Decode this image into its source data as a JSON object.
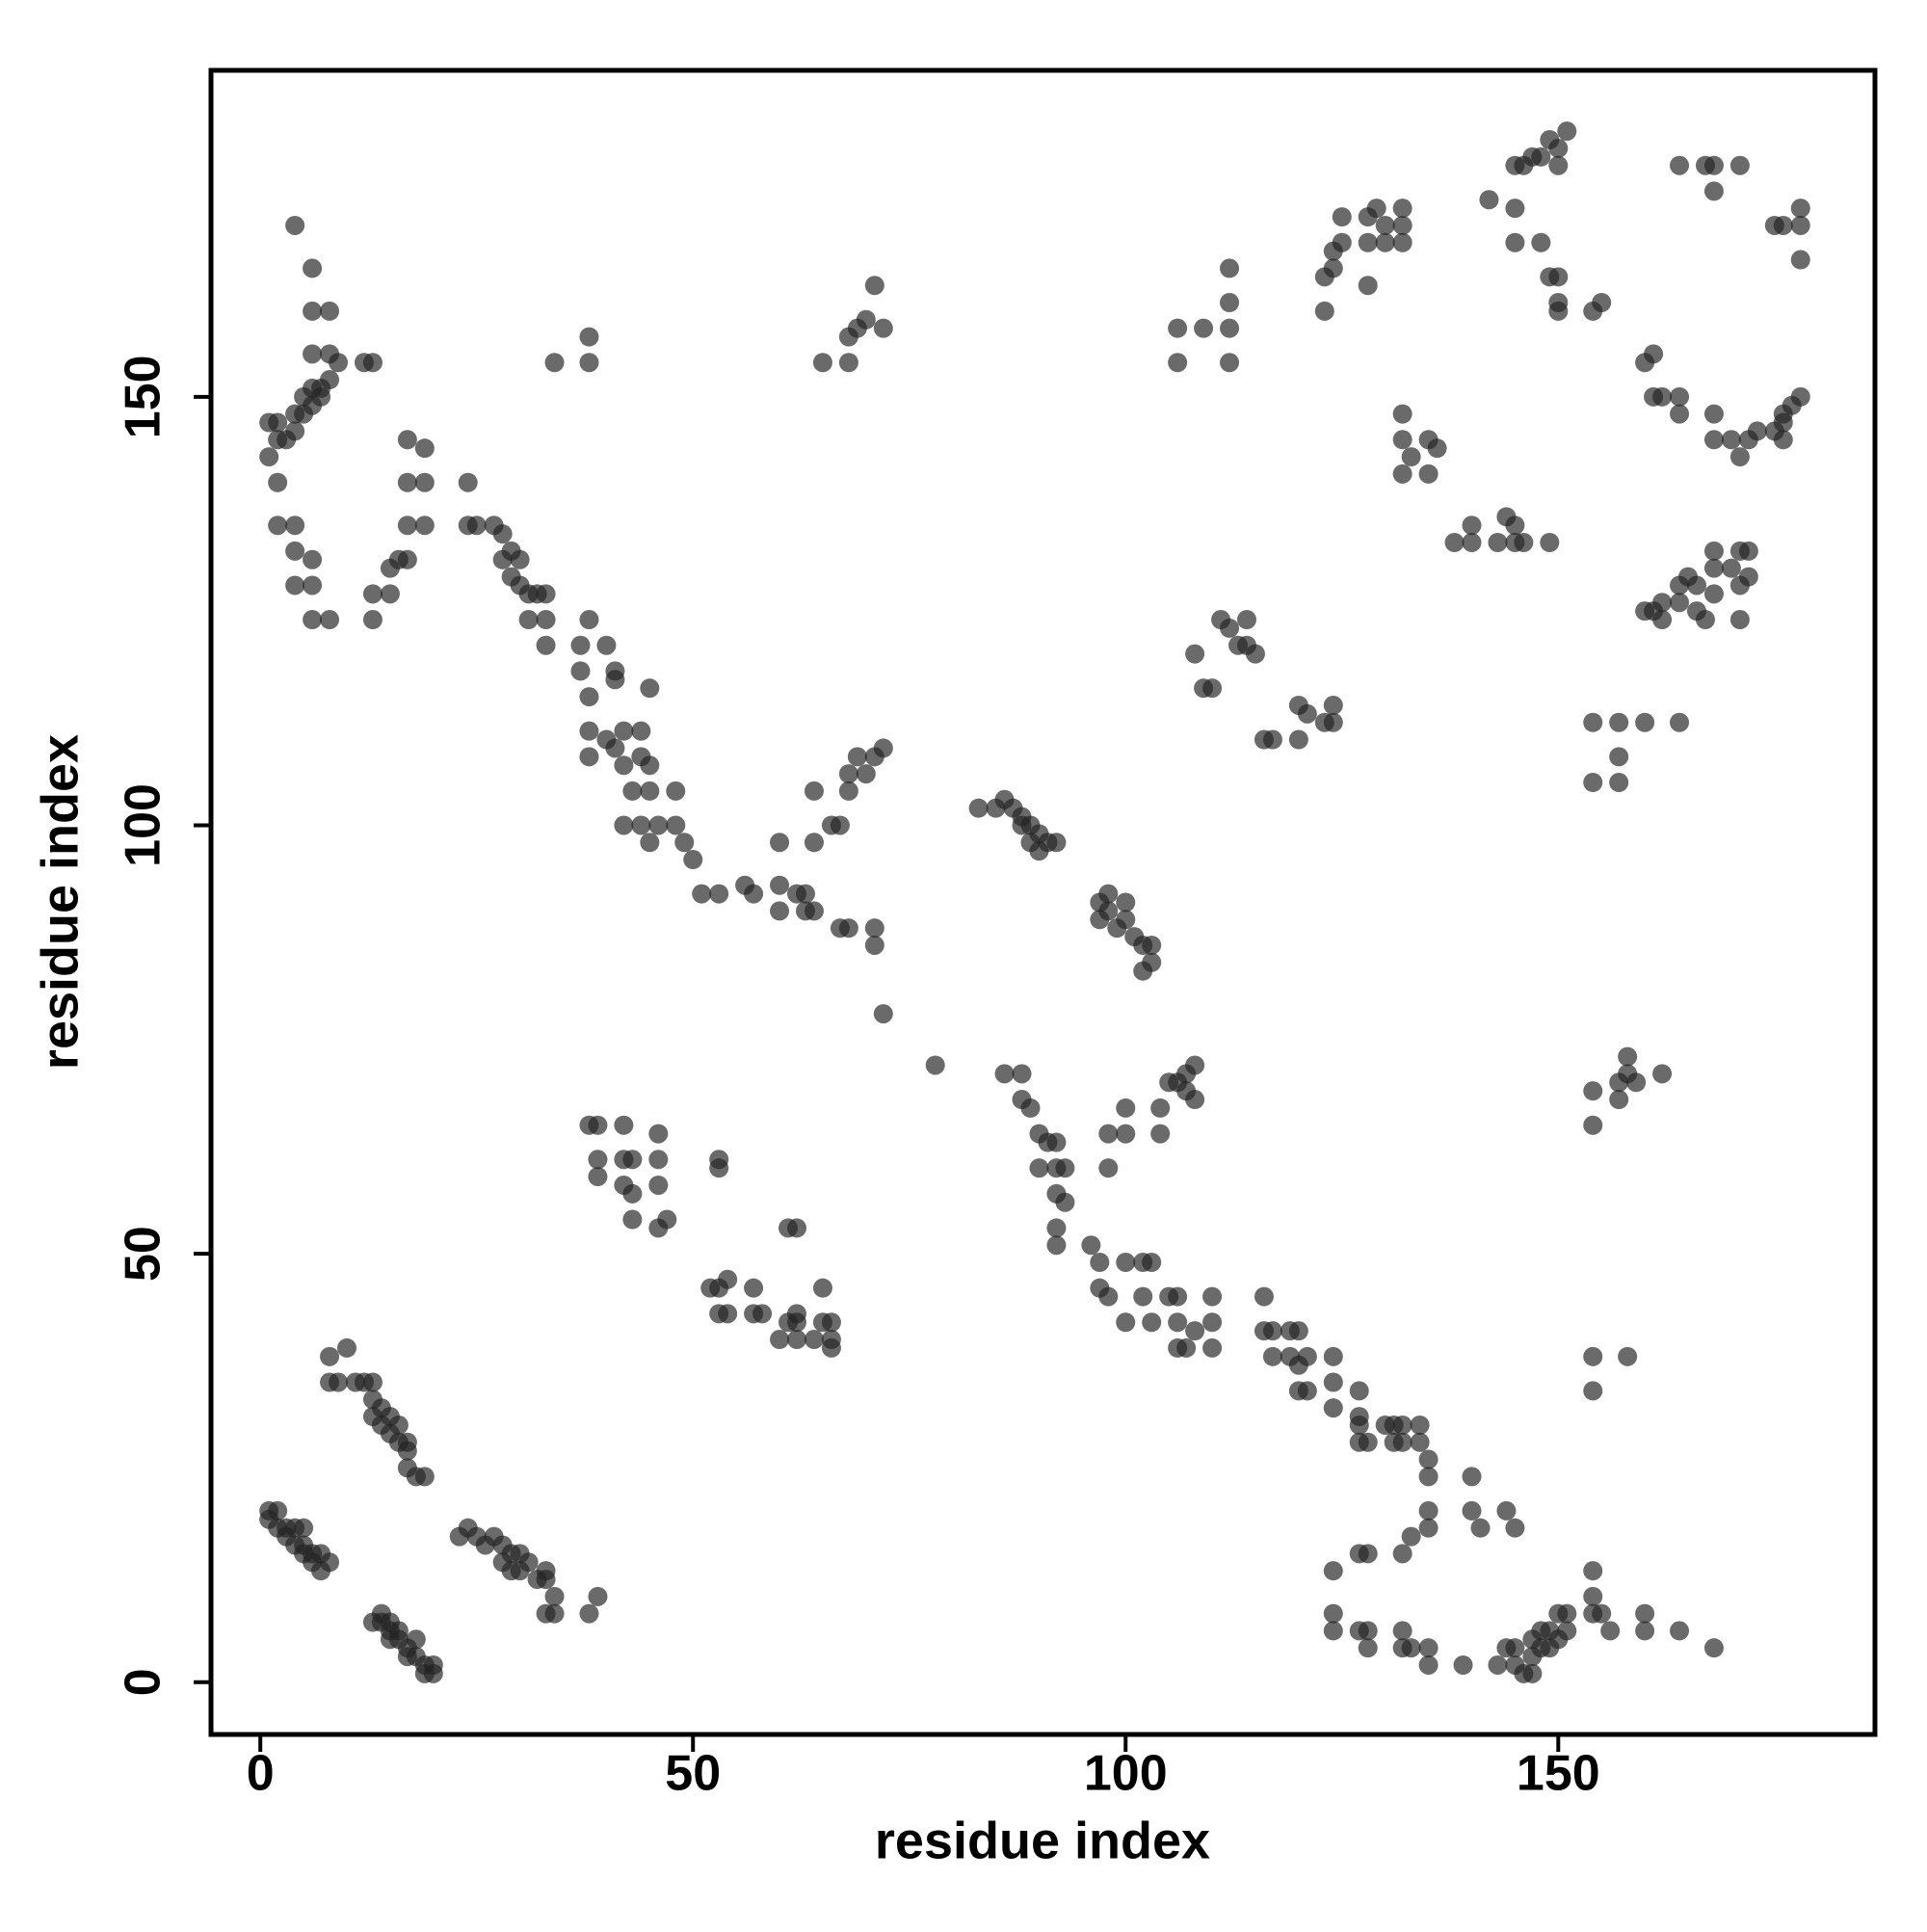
{
  "chart_data": {
    "type": "scatter",
    "x_label": "residue index",
    "y_label": "residue index",
    "color": "rgba(35,35,35,0.68)",
    "xlim": [
      -5.7,
      186.6
    ],
    "ylim": [
      -6.1,
      188.1
    ],
    "xticks": [
      0,
      50,
      100,
      150
    ],
    "yticks": [
      0,
      50,
      100,
      150
    ],
    "x": [
      1,
      2,
      1,
      2,
      3,
      4,
      5,
      4,
      5,
      6,
      7,
      6,
      7,
      8,
      3,
      5,
      13,
      14,
      14,
      15,
      15,
      16,
      16,
      17,
      18,
      18,
      19,
      19,
      20,
      20,
      15,
      17,
      8,
      10,
      8,
      9,
      11,
      12,
      13,
      13,
      14,
      14,
      15,
      15,
      16,
      16,
      17,
      17,
      18,
      19,
      17,
      13,
      23,
      24,
      25,
      26,
      27,
      28,
      28,
      29,
      30,
      31,
      32,
      33,
      33,
      34,
      34,
      33,
      38,
      39,
      30,
      29,
      1,
      2,
      2,
      1,
      3,
      4,
      4,
      5,
      5,
      6,
      6,
      7,
      7,
      8,
      8,
      9,
      12,
      2,
      2,
      4,
      4,
      6,
      4,
      6,
      6,
      8,
      4,
      6,
      6,
      8,
      6,
      13,
      13,
      13,
      15,
      15,
      16,
      17,
      17,
      17,
      17,
      19,
      19,
      19,
      24,
      24,
      25,
      27,
      28,
      28,
      29,
      29,
      30,
      30,
      31,
      32,
      31,
      33,
      33,
      33,
      34,
      38,
      38,
      37,
      37,
      38,
      40,
      41,
      41,
      38,
      38,
      38,
      40,
      41,
      42,
      42,
      43,
      44,
      44,
      45,
      45,
      44,
      45,
      46,
      45,
      42,
      48,
      48,
      49,
      50,
      51,
      53,
      56,
      57,
      60,
      60,
      60,
      62,
      63,
      63,
      64,
      64,
      64,
      66,
      67,
      67,
      68,
      71,
      71,
      72,
      78,
      68,
      68,
      69,
      70,
      71,
      72,
      65,
      68,
      68,
      70,
      71,
      72,
      69,
      83,
      85,
      86,
      87,
      88,
      89,
      90,
      91,
      92,
      88,
      89,
      90,
      97,
      97,
      98,
      98,
      99,
      100,
      100,
      101,
      102,
      103,
      102,
      103,
      38,
      39,
      39,
      39,
      42,
      42,
      43,
      42,
      43,
      43,
      46,
      46,
      46,
      46,
      47,
      53,
      53,
      52,
      53,
      53,
      54,
      54,
      57,
      57,
      58,
      60,
      61,
      62,
      62,
      62,
      61,
      62,
      64,
      65,
      65,
      66,
      66,
      66,
      86,
      88,
      88,
      89,
      90,
      91,
      90,
      92,
      92,
      92,
      93,
      93,
      92,
      92,
      96,
      97,
      97,
      98,
      100,
      100,
      102,
      103,
      102,
      103,
      105,
      106,
      106,
      106,
      107,
      108,
      110,
      110,
      110,
      116,
      116,
      117,
      117,
      119,
      120,
      119,
      120,
      121,
      120,
      121,
      124,
      124,
      124,
      127,
      127,
      127,
      127,
      128,
      130,
      131,
      131,
      132,
      132,
      134,
      134,
      135,
      135,
      135,
      135,
      140,
      140,
      144,
      145,
      141,
      98,
      98,
      100,
      100,
      104,
      104,
      105,
      106,
      107,
      107,
      108,
      108,
      124,
      124,
      124,
      127,
      127,
      128,
      128,
      128,
      132,
      132,
      133,
      132,
      133,
      135,
      135,
      139,
      143,
      144,
      145,
      145,
      146,
      147,
      147,
      147,
      148,
      148,
      149,
      149,
      150,
      150,
      151,
      151,
      154,
      154,
      154,
      155,
      156,
      160,
      160,
      164,
      168,
      154,
      154,
      158,
      154,
      154,
      157,
      157,
      158,
      158,
      159,
      162,
      154,
      154,
      157,
      157,
      157,
      160,
      164,
      106,
      106,
      109,
      112,
      112,
      112,
      112,
      108,
      109,
      110,
      111,
      112,
      113,
      114,
      114,
      115,
      116,
      117,
      120,
      120,
      121,
      123,
      124,
      124,
      132,
      132,
      132,
      133,
      135,
      135,
      136,
      138,
      140,
      140,
      143,
      144,
      145,
      145,
      146,
      149,
      123,
      123,
      124,
      124,
      125,
      125,
      128,
      128,
      128,
      129,
      130,
      130,
      132,
      132,
      132,
      142,
      145,
      145,
      145,
      146,
      147,
      148,
      149,
      150,
      151,
      150,
      148,
      149,
      150,
      150,
      150,
      154,
      155,
      160,
      161,
      162,
      162,
      164,
      164,
      165,
      166,
      166,
      167,
      168,
      168,
      168,
      170,
      171,
      171,
      172,
      172,
      171,
      160,
      161,
      161,
      162,
      164,
      164,
      168,
      168,
      170,
      171,
      172,
      173,
      175,
      176,
      176,
      177,
      178,
      176,
      164,
      167,
      168,
      168,
      171,
      175,
      176,
      178,
      178,
      178
    ],
    "values": [
      20,
      20,
      19,
      18,
      17,
      16,
      16,
      18,
      18,
      15,
      15,
      14,
      13,
      14,
      18,
      15,
      7,
      7,
      8,
      6,
      5,
      5,
      6,
      4,
      3,
      5,
      2,
      1,
      1,
      2,
      7,
      3,
      38,
      39,
      35,
      35,
      35,
      35,
      35,
      33,
      32,
      30,
      31,
      29,
      28,
      30,
      27,
      25,
      24,
      24,
      28,
      31,
      17,
      18,
      17,
      16,
      17,
      16,
      14,
      15,
      13,
      14,
      12,
      12,
      13,
      10,
      8,
      8,
      8,
      10,
      15,
      13,
      147,
      147,
      145,
      143,
      145,
      146,
      148,
      150,
      148,
      149,
      151,
      151,
      150,
      152,
      155,
      154,
      154,
      140,
      135,
      135,
      132,
      131,
      128,
      128,
      124,
      124,
      170,
      165,
      160,
      160,
      155,
      154,
      127,
      124,
      127,
      130,
      131,
      131,
      135,
      140,
      145,
      144,
      140,
      135,
      140,
      135,
      135,
      135,
      134,
      131,
      132,
      129,
      131,
      128,
      127,
      127,
      124,
      127,
      124,
      121,
      154,
      154,
      157,
      121,
      118,
      124,
      121,
      118,
      117,
      115,
      111,
      108,
      110,
      109,
      111,
      107,
      104,
      111,
      108,
      107,
      104,
      100,
      98,
      100,
      116,
      100,
      104,
      100,
      98,
      96,
      92,
      92,
      93,
      92,
      93,
      90,
      98,
      92,
      92,
      90,
      90,
      98,
      104,
      100,
      100,
      88,
      88,
      88,
      86,
      78,
      72,
      104,
      106,
      108,
      106,
      108,
      109,
      154,
      157,
      154,
      159,
      163,
      158,
      158,
      102,
      102,
      103,
      102,
      100,
      100,
      99,
      98,
      98,
      101,
      98,
      97,
      91,
      89,
      92,
      90,
      88,
      89,
      91,
      87,
      86,
      84,
      83,
      86,
      65,
      65,
      61,
      59,
      65,
      61,
      61,
      58,
      57,
      54,
      61,
      58,
      64,
      53,
      54,
      61,
      60,
      46,
      46,
      43,
      47,
      43,
      43,
      46,
      43,
      40,
      42,
      42,
      43,
      40,
      53,
      53,
      40,
      42,
      46,
      40,
      42,
      39,
      71,
      71,
      68,
      67,
      64,
      63,
      60,
      63,
      60,
      57,
      56,
      60,
      53,
      51,
      51,
      49,
      46,
      45,
      49,
      42,
      49,
      49,
      45,
      42,
      45,
      45,
      42,
      39,
      39,
      41,
      45,
      42,
      39,
      45,
      41,
      41,
      38,
      41,
      41,
      38,
      37,
      38,
      34,
      34,
      38,
      35,
      32,
      34,
      31,
      30,
      28,
      28,
      30,
      30,
      28,
      28,
      30,
      30,
      28,
      26,
      24,
      20,
      18,
      24,
      20,
      20,
      18,
      18,
      60,
      64,
      64,
      67,
      64,
      67,
      70,
      70,
      69,
      71,
      72,
      68,
      13,
      8,
      6,
      6,
      15,
      15,
      6,
      4,
      6,
      4,
      4,
      15,
      17,
      4,
      2,
      2,
      2,
      4,
      4,
      2,
      1,
      1,
      3,
      5,
      4,
      6,
      4,
      6,
      5,
      8,
      6,
      8,
      8,
      10,
      13,
      8,
      6,
      8,
      6,
      6,
      4,
      38,
      34,
      38,
      69,
      65,
      68,
      70,
      71,
      73,
      70,
      71,
      112,
      105,
      112,
      108,
      105,
      112,
      112,
      158,
      154,
      158,
      165,
      161,
      158,
      154,
      120,
      116,
      116,
      124,
      123,
      121,
      121,
      124,
      120,
      110,
      110,
      114,
      110,
      113,
      112,
      112,
      114,
      148,
      145,
      141,
      143,
      145,
      141,
      144,
      133,
      133,
      135,
      133,
      136,
      135,
      133,
      133,
      133,
      160,
      164,
      165,
      167,
      171,
      168,
      163,
      168,
      171,
      172,
      170,
      168,
      172,
      170,
      168,
      173,
      172,
      168,
      177,
      177,
      178,
      178,
      180,
      179,
      181,
      177,
      168,
      164,
      164,
      161,
      160,
      160,
      161,
      125,
      125,
      124,
      126,
      126,
      128,
      129,
      128,
      125,
      124,
      127,
      130,
      132,
      130,
      128,
      132,
      132,
      129,
      124,
      154,
      155,
      150,
      150,
      150,
      148,
      148,
      145,
      145,
      143,
      145,
      146,
      146,
      147,
      148,
      149,
      150,
      145,
      177,
      177,
      174,
      177,
      177,
      170,
      170,
      170,
      172,
      166
    ]
  }
}
